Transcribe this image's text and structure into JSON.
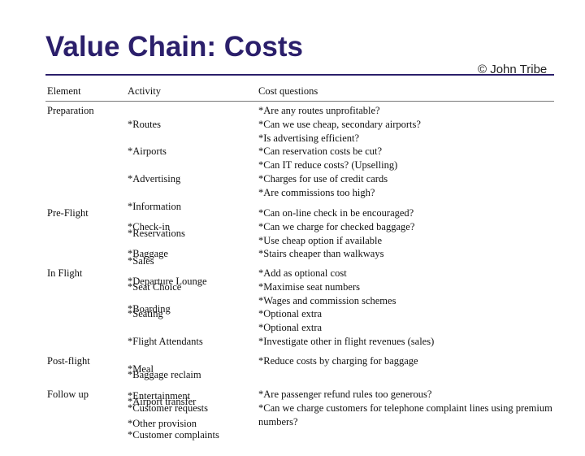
{
  "title": "Value Chain: Costs",
  "copyright": "© John Tribe",
  "table": {
    "headers": [
      "Element",
      "Activity",
      "Cost questions"
    ],
    "rows": [
      {
        "element": "Preparation",
        "activity": [
          "*Routes",
          "*Airports",
          "*Advertising",
          "*Information",
          "*Reservations",
          "*Sales"
        ],
        "questions": [
          "*Are any routes unprofitable?",
          "*Can we use cheap, secondary airports?",
          "*Is advertising efficient?",
          "*Can reservation costs be cut?",
          "*Can IT reduce costs? (Upselling)",
          "*Charges for use of credit cards",
          "*Are commissions too high?"
        ]
      },
      {
        "element": "Pre-Flight",
        "activity": [
          "*Check-in",
          "*Baggage",
          "*Departure Lounge",
          "*Boarding"
        ],
        "questions": [
          "*Can on-line check in be encouraged?",
          "*Can we charge for checked baggage?",
          "*Use cheap option if available",
          "*Stairs cheaper than walkways"
        ]
      },
      {
        "element": "In Flight",
        "activity": [
          "*Seat Choice",
          "*Seating",
          "*Flight Attendants",
          "*Meal",
          "*Entertainment",
          "*Other provision"
        ],
        "questions": [
          "*Add as optional cost",
          "*Maximise seat numbers",
          "*Wages and commission schemes",
          "*Optional extra",
          "*Optional extra",
          "*Investigate other in flight revenues (sales)"
        ]
      },
      {
        "element": "Post-flight",
        "activity": [
          "*Baggage reclaim",
          "*Airport transfer"
        ],
        "questions": [
          "*Reduce costs by charging for baggage"
        ]
      },
      {
        "element": "Follow up",
        "activity": [
          "*Customer requests",
          "*Customer complaints"
        ],
        "questions": [
          "*Are passenger refund rules too generous?",
          "*Can we charge customers for telephone complaint lines using premium numbers?"
        ]
      }
    ]
  }
}
